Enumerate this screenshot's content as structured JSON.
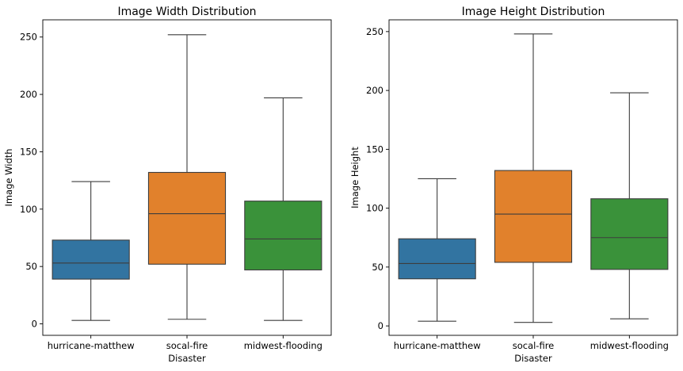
{
  "chart_data": [
    {
      "type": "box",
      "title": "Image Width Distribution",
      "xlabel": "Disaster",
      "ylabel": "Image Width",
      "ylim": [
        -10,
        265
      ],
      "yticks": [
        0,
        50,
        100,
        150,
        200,
        250
      ],
      "categories": [
        "hurricane-matthew",
        "socal-fire",
        "midwest-flooding"
      ],
      "colors": [
        "#3274a1",
        "#e1812c",
        "#3a923a"
      ],
      "boxes": [
        {
          "whislo": 3,
          "q1": 39,
          "med": 53,
          "q3": 73,
          "whishi": 124
        },
        {
          "whislo": 4,
          "q1": 52,
          "med": 96,
          "q3": 132,
          "whishi": 252
        },
        {
          "whislo": 3,
          "q1": 47,
          "med": 74,
          "q3": 107,
          "whishi": 197
        }
      ]
    },
    {
      "type": "box",
      "title": "Image Height Distribution",
      "xlabel": "Disaster",
      "ylabel": "Image Height",
      "ylim": [
        -8,
        260
      ],
      "yticks": [
        0,
        50,
        100,
        150,
        200,
        250
      ],
      "categories": [
        "hurricane-matthew",
        "socal-fire",
        "midwest-flooding"
      ],
      "colors": [
        "#3274a1",
        "#e1812c",
        "#3a923a"
      ],
      "boxes": [
        {
          "whislo": 4,
          "q1": 40,
          "med": 53,
          "q3": 74,
          "whishi": 125
        },
        {
          "whislo": 3,
          "q1": 54,
          "med": 95,
          "q3": 132,
          "whishi": 248
        },
        {
          "whislo": 6,
          "q1": 48,
          "med": 75,
          "q3": 108,
          "whishi": 198
        }
      ]
    }
  ]
}
